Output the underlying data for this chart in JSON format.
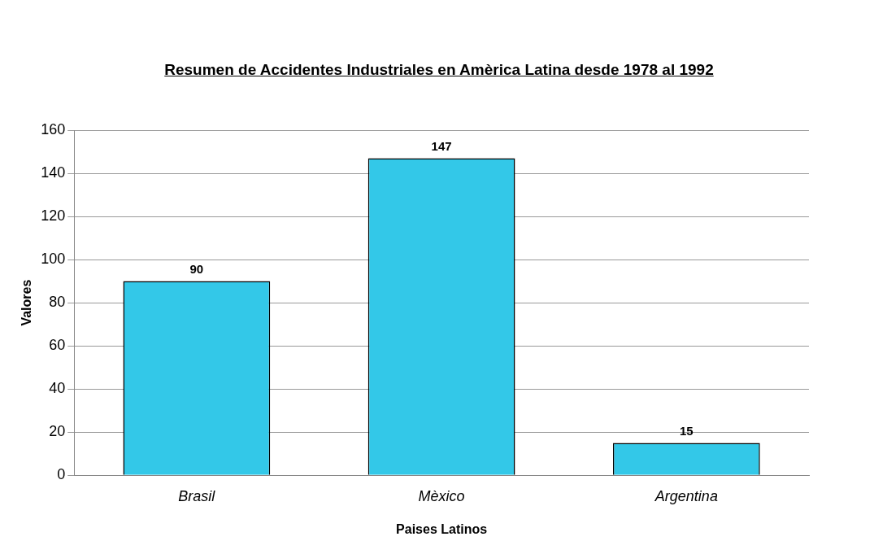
{
  "chart_data": {
    "type": "bar",
    "title": "Resumen de Accidentes Industriales en Amèrica Latina desde 1978 al 1992",
    "xlabel": "Paises Latinos",
    "ylabel": "Valores",
    "categories": [
      "Brasil",
      "Mèxico",
      "Argentina"
    ],
    "values": [
      90,
      147,
      15
    ],
    "color": "#33c8e8",
    "ylim": [
      0,
      160
    ],
    "yticks": [
      0,
      20,
      40,
      60,
      80,
      100,
      120,
      140,
      160
    ],
    "grid": "y",
    "legend": false,
    "data_labels": true
  }
}
